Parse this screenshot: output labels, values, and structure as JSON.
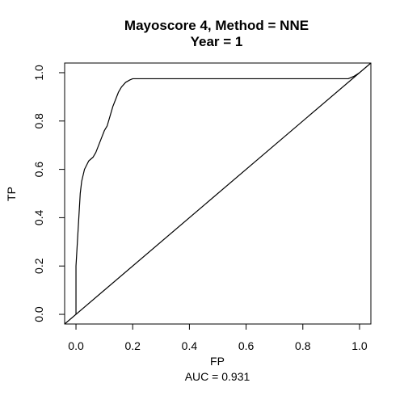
{
  "chart_data": {
    "type": "line",
    "title": "Mayoscore 4, Method = NNE",
    "subtitle": "Year = 1",
    "xlabel": "FP",
    "ylabel": "TP",
    "xlim": [
      -0.04,
      1.04
    ],
    "ylim": [
      -0.04,
      1.04
    ],
    "x_ticks": [
      "0.0",
      "0.2",
      "0.4",
      "0.6",
      "0.8",
      "1.0"
    ],
    "y_ticks": [
      "0.0",
      "0.2",
      "0.4",
      "0.6",
      "0.8",
      "1.0"
    ],
    "grid": false,
    "annotation": "AUC =  0.931",
    "series": [
      {
        "values": [
          [
            0.0,
            0.0
          ],
          [
            0.0,
            0.2
          ],
          [
            0.005,
            0.3
          ],
          [
            0.01,
            0.4
          ],
          [
            0.015,
            0.5
          ],
          [
            0.02,
            0.55
          ],
          [
            0.03,
            0.6
          ],
          [
            0.045,
            0.635
          ],
          [
            0.06,
            0.65
          ],
          [
            0.07,
            0.67
          ],
          [
            0.08,
            0.7
          ],
          [
            0.09,
            0.73
          ],
          [
            0.1,
            0.76
          ],
          [
            0.11,
            0.78
          ],
          [
            0.12,
            0.82
          ],
          [
            0.13,
            0.86
          ],
          [
            0.14,
            0.89
          ],
          [
            0.15,
            0.92
          ],
          [
            0.16,
            0.94
          ],
          [
            0.175,
            0.96
          ],
          [
            0.19,
            0.97
          ],
          [
            0.2,
            0.975
          ],
          [
            0.3,
            0.975
          ],
          [
            0.5,
            0.975
          ],
          [
            0.7,
            0.975
          ],
          [
            0.9,
            0.975
          ],
          [
            0.96,
            0.975
          ],
          [
            0.98,
            0.985
          ],
          [
            1.0,
            1.0
          ]
        ]
      },
      {
        "values": [
          [
            -0.04,
            -0.04
          ],
          [
            1.04,
            1.04
          ]
        ]
      }
    ]
  }
}
